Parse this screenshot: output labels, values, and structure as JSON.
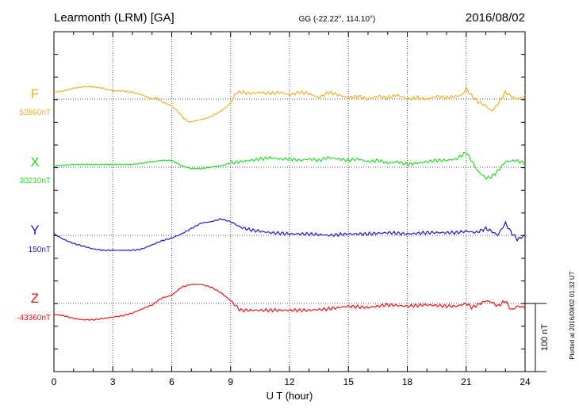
{
  "header": {
    "station": "Learmonth (LRM)  [GA]",
    "coords": "GG (-22.22°, 114.10°)",
    "date": "2016/08/02"
  },
  "side_note": "Plotted at 2016/09/02 01:32 UT",
  "chart_data": {
    "type": "line",
    "title": "Learmonth (LRM)  [GA]",
    "xlabel": "U T (hour)",
    "xlim": [
      0,
      24
    ],
    "xticks": [
      0,
      3,
      6,
      9,
      12,
      15,
      18,
      21,
      24
    ],
    "xtick_labels": [
      "0",
      "3",
      "6",
      "9",
      "12",
      "15",
      "18",
      "21",
      "24"
    ],
    "scale_bar": {
      "label": "100 nT",
      "value": 100
    },
    "grid": true,
    "series": [
      {
        "name": "F",
        "baseline_label": "52860nT",
        "color": "#f0b020",
        "offset_rank": 0,
        "x": [
          0,
          0.5,
          1,
          1.5,
          2,
          2.5,
          3,
          3.5,
          4,
          4.5,
          5,
          5.2,
          5.5,
          6,
          6.3,
          6.6,
          6.9,
          7.2,
          7.5,
          7.8,
          8.1,
          8.5,
          9,
          9.3,
          9.6,
          10,
          10.5,
          11,
          11.5,
          12,
          12.5,
          13,
          13.5,
          14,
          14.5,
          15,
          15.5,
          16,
          16.5,
          17,
          17.5,
          18,
          18.5,
          19,
          19.5,
          20,
          20.5,
          20.8,
          21,
          21.3,
          21.6,
          22,
          22.3,
          22.6,
          23,
          23.3,
          23.6,
          24
        ],
        "y": [
          10,
          12,
          16,
          18,
          18,
          16,
          12,
          12,
          10,
          6,
          0,
          2,
          -4,
          -10,
          -18,
          -28,
          -34,
          -32,
          -30,
          -28,
          -24,
          -18,
          -6,
          10,
          10,
          8,
          10,
          8,
          10,
          6,
          10,
          8,
          2,
          10,
          6,
          2,
          4,
          0,
          4,
          2,
          6,
          0,
          2,
          0,
          4,
          2,
          4,
          6,
          16,
          4,
          -4,
          -10,
          -18,
          -8,
          10,
          4,
          0,
          4
        ]
      },
      {
        "name": "X",
        "baseline_label": "30210nT",
        "color": "#22dd22",
        "offset_rank": 1,
        "x": [
          0,
          1,
          2,
          3,
          4,
          4.5,
          5,
          5.5,
          6,
          6.5,
          7,
          7.5,
          8,
          8.5,
          9,
          9.5,
          10,
          10.5,
          11,
          11.5,
          12,
          12.5,
          13,
          13.5,
          14,
          14.5,
          15,
          15.5,
          16,
          16.5,
          17,
          17.5,
          18,
          18.5,
          19,
          19.5,
          20,
          20.5,
          21,
          21.3,
          21.6,
          22,
          22.3,
          22.6,
          23,
          23.5,
          24
        ],
        "y": [
          2,
          4,
          4,
          4,
          4,
          6,
          8,
          10,
          10,
          2,
          -2,
          -2,
          0,
          2,
          6,
          8,
          10,
          12,
          14,
          12,
          12,
          10,
          12,
          10,
          14,
          12,
          10,
          12,
          8,
          10,
          6,
          8,
          4,
          6,
          8,
          10,
          10,
          12,
          22,
          8,
          -6,
          -16,
          -14,
          -6,
          8,
          10,
          6
        ]
      },
      {
        "name": "Y",
        "baseline_label": "150nT",
        "color": "#1a1acc",
        "offset_rank": 2,
        "x": [
          0,
          0.5,
          1,
          1.5,
          2,
          2.5,
          3,
          3.5,
          4,
          4.5,
          5,
          5.5,
          6,
          6.5,
          7,
          7.5,
          8,
          8.5,
          9,
          9.5,
          10,
          11,
          12,
          13,
          14,
          15,
          16,
          17,
          18,
          19,
          20,
          20.5,
          21,
          21.5,
          22,
          22.3,
          22.6,
          23,
          23.3,
          23.6,
          24
        ],
        "y": [
          2,
          -6,
          -12,
          -16,
          -20,
          -22,
          -22,
          -22,
          -22,
          -20,
          -14,
          -8,
          -4,
          2,
          10,
          18,
          20,
          24,
          20,
          12,
          8,
          4,
          2,
          2,
          0,
          2,
          2,
          4,
          2,
          4,
          4,
          4,
          6,
          4,
          10,
          6,
          0,
          18,
          4,
          -6,
          0
        ]
      },
      {
        "name": "Z",
        "baseline_label": "-43360nT",
        "color": "#ee1111",
        "offset_rank": 3,
        "x": [
          0,
          0.5,
          1,
          1.5,
          2,
          2.5,
          3,
          3.5,
          4,
          4.5,
          5,
          5.5,
          6,
          6.5,
          7,
          7.5,
          8,
          8.5,
          9,
          9.5,
          10,
          11,
          12,
          13,
          14,
          15,
          16,
          17,
          18,
          19,
          20,
          20.5,
          21,
          21.3,
          22,
          22.3,
          22.6,
          23,
          23.3,
          23.6,
          24
        ],
        "y": [
          -16,
          -18,
          -22,
          -24,
          -24,
          -22,
          -20,
          -18,
          -14,
          -8,
          -2,
          8,
          12,
          24,
          28,
          28,
          24,
          16,
          4,
          -10,
          -10,
          -10,
          -10,
          -10,
          -8,
          -4,
          -6,
          -2,
          -4,
          -2,
          -4,
          -4,
          0,
          -6,
          4,
          2,
          -4,
          4,
          -10,
          -4,
          -6
        ]
      }
    ]
  }
}
